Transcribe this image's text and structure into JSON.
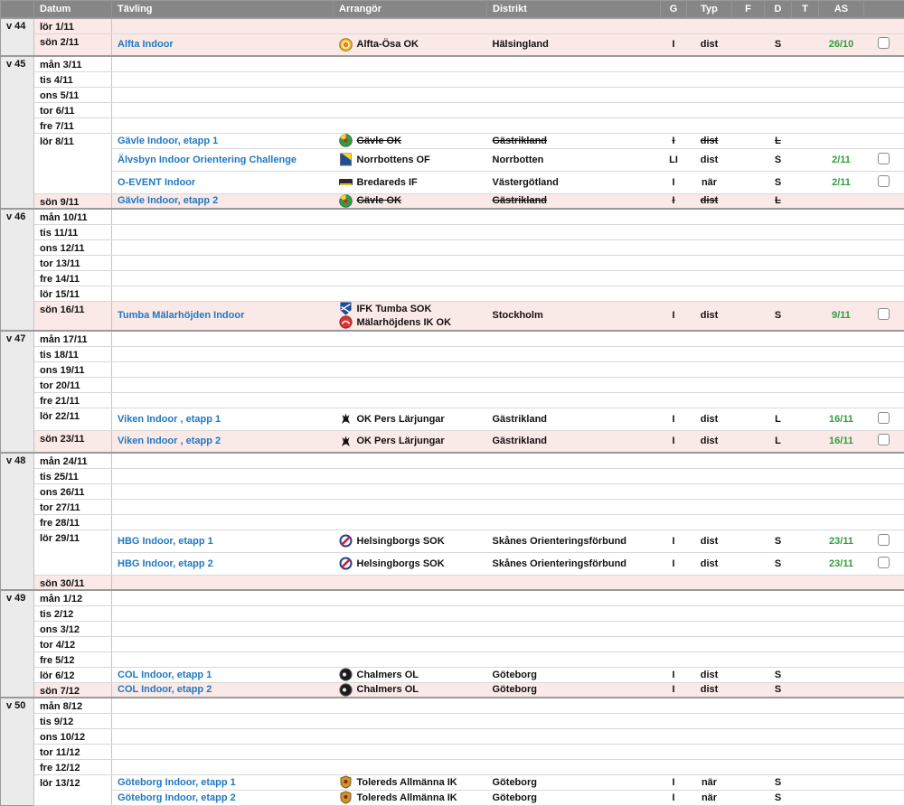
{
  "table": {
    "colors": {
      "link_blue": "#2178c2",
      "as_green": "#2f9e3f",
      "holiday_pink": "#fbe9e7",
      "header_gray": "#868686",
      "week_column_gray": "#ebebeb"
    },
    "columns": [
      {
        "key": "week",
        "label": ""
      },
      {
        "key": "datum",
        "label": "Datum"
      },
      {
        "key": "tavling",
        "label": "Tävling"
      },
      {
        "key": "arrangor",
        "label": "Arrangör"
      },
      {
        "key": "distrikt",
        "label": "Distrikt"
      },
      {
        "key": "g",
        "label": "G"
      },
      {
        "key": "typ",
        "label": "Typ"
      },
      {
        "key": "f",
        "label": "F"
      },
      {
        "key": "d",
        "label": "D"
      },
      {
        "key": "t",
        "label": "T"
      },
      {
        "key": "as",
        "label": "AS"
      },
      {
        "key": "select",
        "label": ""
      }
    ],
    "weeks": [
      {
        "week": "v 44",
        "rows": [
          {
            "date": "lör 1/11",
            "red": true,
            "events": []
          },
          {
            "date": "sön 2/11",
            "red": true,
            "events": [
              {
                "title": "Alfta Indoor",
                "cancelled": false,
                "organizers": [
                  {
                    "icon": "alfta-osa-ok",
                    "name": "Alfta-Ösa OK"
                  }
                ],
                "district": "Hälsingland",
                "g": "I",
                "typ": "dist",
                "f": "",
                "d": "S",
                "t": "",
                "as": "26/10",
                "checkbox": true
              }
            ]
          }
        ]
      },
      {
        "week": "v 45",
        "rows": [
          {
            "date": "mån 3/11",
            "red": false,
            "events": []
          },
          {
            "date": "tis 4/11",
            "red": false,
            "events": []
          },
          {
            "date": "ons 5/11",
            "red": false,
            "events": []
          },
          {
            "date": "tor 6/11",
            "red": false,
            "events": []
          },
          {
            "date": "fre 7/11",
            "red": false,
            "events": []
          },
          {
            "date": "lör 8/11",
            "red": false,
            "events": [
              {
                "title": "Gävle Indoor, etapp 1",
                "cancelled": true,
                "organizers": [
                  {
                    "icon": "gavle-ok",
                    "name": "Gävle OK"
                  }
                ],
                "district": "Gästrikland",
                "g": "I",
                "typ": "dist",
                "f": "",
                "d": "L",
                "t": "",
                "as": "",
                "checkbox": false
              },
              {
                "title": "Älvsbyn Indoor Orientering Challenge",
                "cancelled": false,
                "organizers": [
                  {
                    "icon": "norrbottens-of",
                    "name": "Norrbottens OF"
                  }
                ],
                "district": "Norrbotten",
                "g": "LI",
                "typ": "dist",
                "f": "",
                "d": "S",
                "t": "",
                "as": "2/11",
                "checkbox": true
              },
              {
                "title": "O-EVENT Indoor",
                "cancelled": false,
                "organizers": [
                  {
                    "icon": "bredareds-if",
                    "name": "Bredareds IF"
                  }
                ],
                "district": "Västergötland",
                "g": "I",
                "typ": "när",
                "f": "",
                "d": "S",
                "t": "",
                "as": "2/11",
                "checkbox": true
              }
            ]
          },
          {
            "date": "sön 9/11",
            "red": true,
            "events": [
              {
                "title": "Gävle Indoor, etapp 2",
                "cancelled": true,
                "organizers": [
                  {
                    "icon": "gavle-ok",
                    "name": "Gävle OK"
                  }
                ],
                "district": "Gästrikland",
                "g": "I",
                "typ": "dist",
                "f": "",
                "d": "L",
                "t": "",
                "as": "",
                "checkbox": false
              }
            ]
          }
        ]
      },
      {
        "week": "v 46",
        "rows": [
          {
            "date": "mån 10/11",
            "red": false,
            "events": []
          },
          {
            "date": "tis 11/11",
            "red": false,
            "events": []
          },
          {
            "date": "ons 12/11",
            "red": false,
            "events": []
          },
          {
            "date": "tor 13/11",
            "red": false,
            "events": []
          },
          {
            "date": "fre 14/11",
            "red": false,
            "events": []
          },
          {
            "date": "lör 15/11",
            "red": false,
            "events": []
          },
          {
            "date": "sön 16/11",
            "red": true,
            "events": [
              {
                "title": "Tumba Mälarhöjden Indoor",
                "cancelled": false,
                "organizers": [
                  {
                    "icon": "ifk-tumba-sok",
                    "name": "IFK Tumba SOK"
                  },
                  {
                    "icon": "malarhojdens-ik",
                    "name": "Mälarhöjdens IK OK"
                  }
                ],
                "district": "Stockholm",
                "g": "I",
                "typ": "dist",
                "f": "",
                "d": "S",
                "t": "",
                "as": "9/11",
                "checkbox": true
              }
            ]
          }
        ]
      },
      {
        "week": "v 47",
        "rows": [
          {
            "date": "mån 17/11",
            "red": false,
            "events": []
          },
          {
            "date": "tis 18/11",
            "red": false,
            "events": []
          },
          {
            "date": "ons 19/11",
            "red": false,
            "events": []
          },
          {
            "date": "tor 20/11",
            "red": false,
            "events": []
          },
          {
            "date": "fre 21/11",
            "red": false,
            "events": []
          },
          {
            "date": "lör 22/11",
            "red": false,
            "events": [
              {
                "title": "Viken Indoor , etapp 1",
                "cancelled": false,
                "organizers": [
                  {
                    "icon": "ok-pers-larjungar",
                    "name": "OK Pers Lärjungar"
                  }
                ],
                "district": "Gästrikland",
                "g": "I",
                "typ": "dist",
                "f": "",
                "d": "L",
                "t": "",
                "as": "16/11",
                "checkbox": true
              }
            ]
          },
          {
            "date": "sön 23/11",
            "red": true,
            "events": [
              {
                "title": "Viken Indoor , etapp 2",
                "cancelled": false,
                "organizers": [
                  {
                    "icon": "ok-pers-larjungar",
                    "name": "OK Pers Lärjungar"
                  }
                ],
                "district": "Gästrikland",
                "g": "I",
                "typ": "dist",
                "f": "",
                "d": "L",
                "t": "",
                "as": "16/11",
                "checkbox": true
              }
            ]
          }
        ]
      },
      {
        "week": "v 48",
        "rows": [
          {
            "date": "mån 24/11",
            "red": false,
            "events": []
          },
          {
            "date": "tis 25/11",
            "red": false,
            "events": []
          },
          {
            "date": "ons 26/11",
            "red": false,
            "events": []
          },
          {
            "date": "tor 27/11",
            "red": false,
            "events": []
          },
          {
            "date": "fre 28/11",
            "red": false,
            "events": []
          },
          {
            "date": "lör 29/11",
            "red": false,
            "events": [
              {
                "title": "HBG Indoor, etapp 1",
                "cancelled": false,
                "organizers": [
                  {
                    "icon": "helsingborgs-sok",
                    "name": "Helsingborgs SOK"
                  }
                ],
                "district": "Skånes Orienteringsförbund",
                "g": "I",
                "typ": "dist",
                "f": "",
                "d": "S",
                "t": "",
                "as": "23/11",
                "checkbox": true
              },
              {
                "title": "HBG Indoor, etapp 2",
                "cancelled": false,
                "organizers": [
                  {
                    "icon": "helsingborgs-sok",
                    "name": "Helsingborgs SOK"
                  }
                ],
                "district": "Skånes Orienteringsförbund",
                "g": "I",
                "typ": "dist",
                "f": "",
                "d": "S",
                "t": "",
                "as": "23/11",
                "checkbox": true
              }
            ]
          },
          {
            "date": "sön 30/11",
            "red": true,
            "events": []
          }
        ]
      },
      {
        "week": "v 49",
        "rows": [
          {
            "date": "mån 1/12",
            "red": false,
            "events": []
          },
          {
            "date": "tis 2/12",
            "red": false,
            "events": []
          },
          {
            "date": "ons 3/12",
            "red": false,
            "events": []
          },
          {
            "date": "tor 4/12",
            "red": false,
            "events": []
          },
          {
            "date": "fre 5/12",
            "red": false,
            "events": []
          },
          {
            "date": "lör 6/12",
            "red": false,
            "events": [
              {
                "title": "COL Indoor, etapp 1",
                "cancelled": false,
                "organizers": [
                  {
                    "icon": "chalmers-ol",
                    "name": "Chalmers OL"
                  }
                ],
                "district": "Göteborg",
                "g": "I",
                "typ": "dist",
                "f": "",
                "d": "S",
                "t": "",
                "as": "",
                "checkbox": false
              }
            ]
          },
          {
            "date": "sön 7/12",
            "red": true,
            "events": [
              {
                "title": "COL Indoor, etapp 2",
                "cancelled": false,
                "organizers": [
                  {
                    "icon": "chalmers-ol",
                    "name": "Chalmers OL"
                  }
                ],
                "district": "Göteborg",
                "g": "I",
                "typ": "dist",
                "f": "",
                "d": "S",
                "t": "",
                "as": "",
                "checkbox": false
              }
            ]
          }
        ]
      },
      {
        "week": "v 50",
        "rows": [
          {
            "date": "mån 8/12",
            "red": false,
            "events": []
          },
          {
            "date": "tis 9/12",
            "red": false,
            "events": []
          },
          {
            "date": "ons 10/12",
            "red": false,
            "events": []
          },
          {
            "date": "tor 11/12",
            "red": false,
            "events": []
          },
          {
            "date": "fre 12/12",
            "red": false,
            "events": []
          },
          {
            "date": "lör 13/12",
            "red": false,
            "events": [
              {
                "title": "Göteborg Indoor, etapp 1",
                "cancelled": false,
                "organizers": [
                  {
                    "icon": "tolereds-allmanna-ik",
                    "name": "Tolereds Allmänna IK"
                  }
                ],
                "district": "Göteborg",
                "g": "I",
                "typ": "när",
                "f": "",
                "d": "S",
                "t": "",
                "as": "",
                "checkbox": false
              },
              {
                "title": "Göteborg Indoor, etapp 2",
                "cancelled": false,
                "organizers": [
                  {
                    "icon": "tolereds-allmanna-ik",
                    "name": "Tolereds Allmänna IK"
                  }
                ],
                "district": "Göteborg",
                "g": "I",
                "typ": "när",
                "f": "",
                "d": "S",
                "t": "",
                "as": "",
                "checkbox": false
              }
            ]
          }
        ]
      }
    ]
  }
}
